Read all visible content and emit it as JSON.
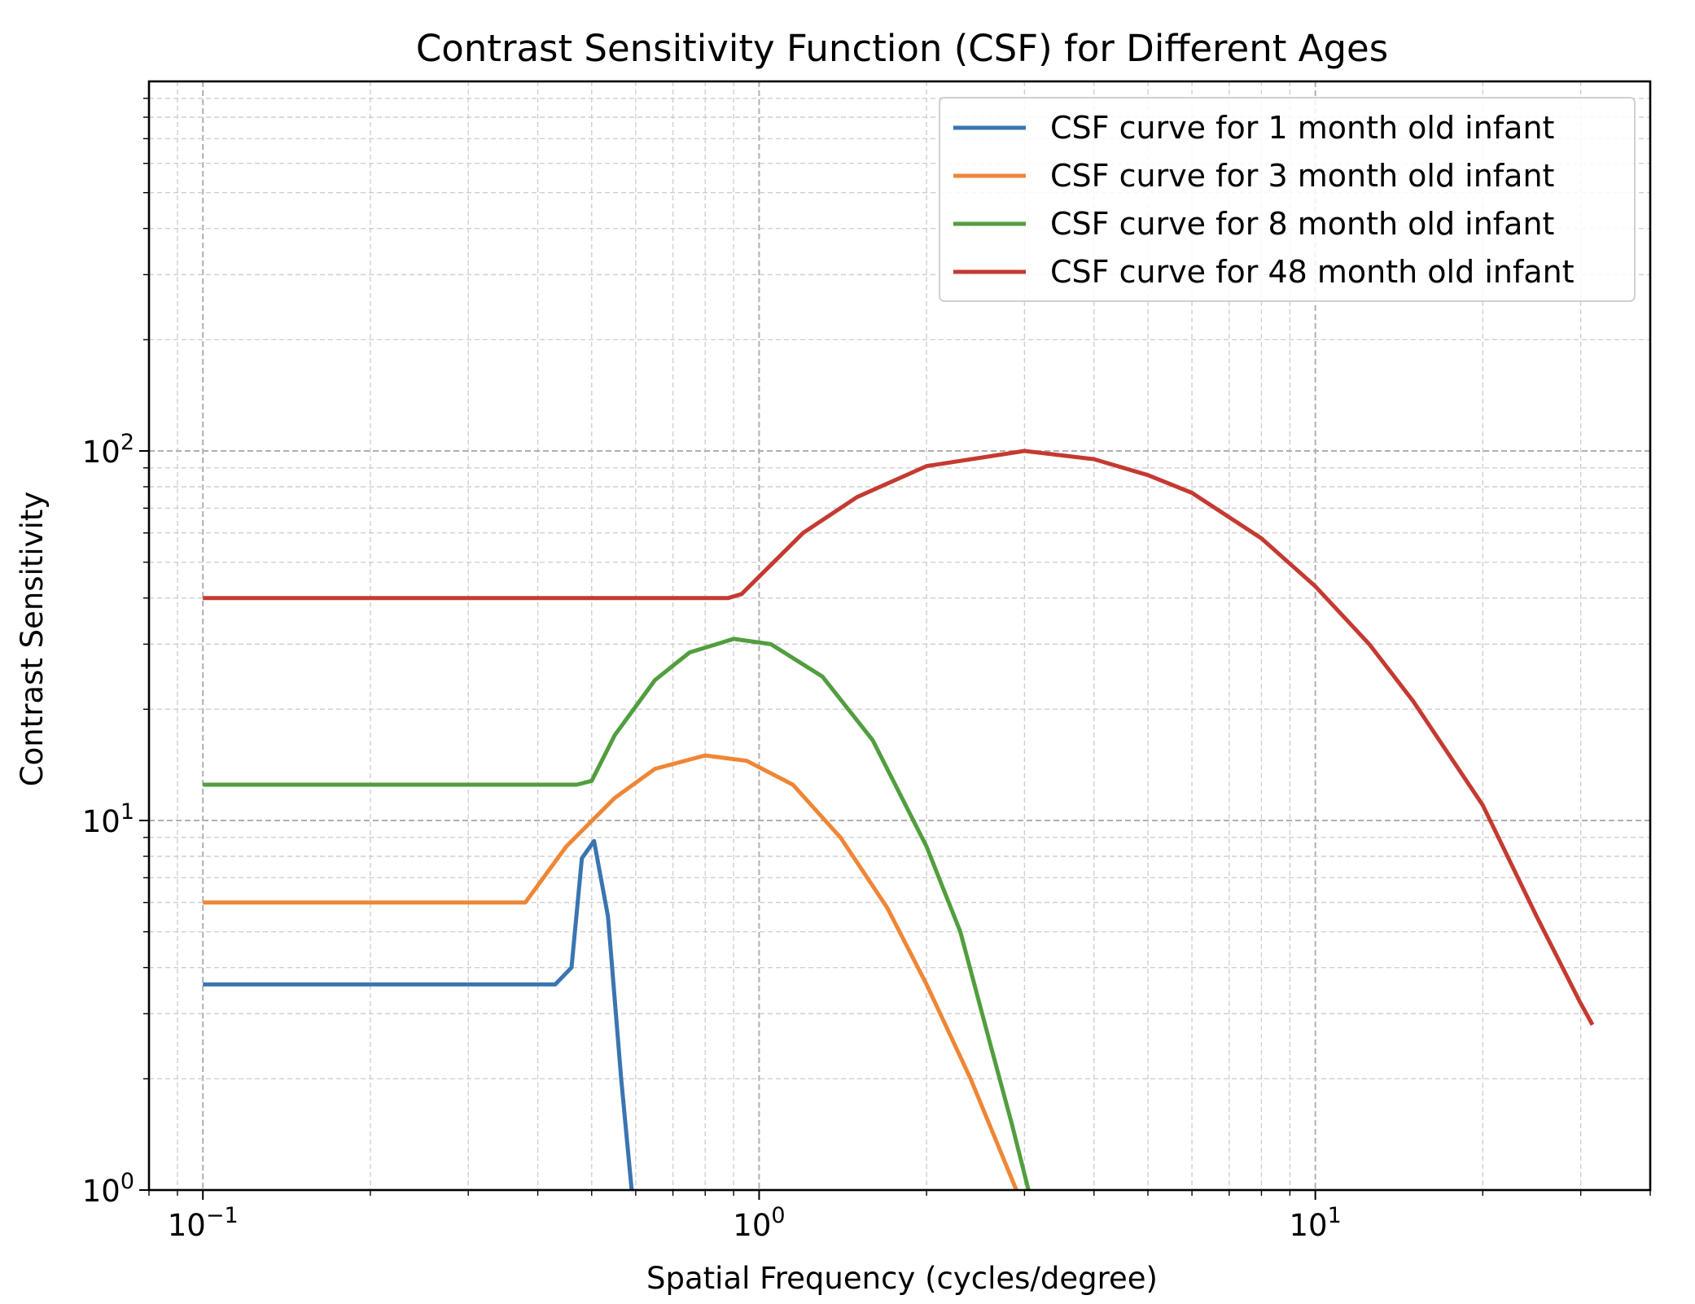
{
  "chart_data": {
    "type": "line",
    "title": "Contrast Sensitivity Function (CSF) for Different Ages",
    "xlabel": "Spatial Frequency (cycles/degree)",
    "ylabel": "Contrast Sensitivity",
    "xscale": "log",
    "yscale": "log",
    "xlim": [
      0.08,
      40
    ],
    "ylim": [
      1,
      1000
    ],
    "x_ticks": [
      {
        "value": 0.1,
        "base": "10",
        "exp": "−1"
      },
      {
        "value": 1,
        "base": "10",
        "exp": "0"
      },
      {
        "value": 10,
        "base": "10",
        "exp": "1"
      }
    ],
    "y_ticks": [
      {
        "value": 1,
        "base": "10",
        "exp": "0"
      },
      {
        "value": 10,
        "base": "10",
        "exp": "1"
      },
      {
        "value": 100,
        "base": "10",
        "exp": "2"
      }
    ],
    "grid": "major and minor, dashed",
    "legend_position": "upper-right",
    "series": [
      {
        "name": "CSF curve for 1 month old infant",
        "color": "#3a75b0",
        "points": [
          [
            0.1,
            3.6
          ],
          [
            0.43,
            3.6
          ],
          [
            0.46,
            4.0
          ],
          [
            0.48,
            7.9
          ],
          [
            0.505,
            8.8
          ],
          [
            0.535,
            5.5
          ],
          [
            0.565,
            2.0
          ],
          [
            0.59,
            1.0
          ]
        ]
      },
      {
        "name": "CSF curve for 3 month old infant",
        "color": "#ef8636",
        "points": [
          [
            0.1,
            6.0
          ],
          [
            0.38,
            6.0
          ],
          [
            0.45,
            8.5
          ],
          [
            0.55,
            11.5
          ],
          [
            0.65,
            13.8
          ],
          [
            0.8,
            15.0
          ],
          [
            0.95,
            14.5
          ],
          [
            1.15,
            12.5
          ],
          [
            1.4,
            9.0
          ],
          [
            1.7,
            5.8
          ],
          [
            2.0,
            3.6
          ],
          [
            2.4,
            2.0
          ],
          [
            2.7,
            1.3
          ],
          [
            2.9,
            1.0
          ]
        ]
      },
      {
        "name": "CSF curve for 8 month old infant",
        "color": "#519e3e",
        "points": [
          [
            0.1,
            12.5
          ],
          [
            0.47,
            12.5
          ],
          [
            0.5,
            12.8
          ],
          [
            0.55,
            17.0
          ],
          [
            0.65,
            24.0
          ],
          [
            0.75,
            28.5
          ],
          [
            0.9,
            31.0
          ],
          [
            1.05,
            30.0
          ],
          [
            1.3,
            24.5
          ],
          [
            1.6,
            16.5
          ],
          [
            2.0,
            8.5
          ],
          [
            2.3,
            5.0
          ],
          [
            2.6,
            2.5
          ],
          [
            2.85,
            1.5
          ],
          [
            3.05,
            1.0
          ]
        ]
      },
      {
        "name": "CSF curve for 48 month old infant",
        "color": "#c43a31",
        "points": [
          [
            0.1,
            40.0
          ],
          [
            0.88,
            40.0
          ],
          [
            0.93,
            41.0
          ],
          [
            1.2,
            60.0
          ],
          [
            1.5,
            75.0
          ],
          [
            2.0,
            91.0
          ],
          [
            3.0,
            100.0
          ],
          [
            4.0,
            95.0
          ],
          [
            5.0,
            86.0
          ],
          [
            6.0,
            77.0
          ],
          [
            8.0,
            58.0
          ],
          [
            10.0,
            43.0
          ],
          [
            12.5,
            30.0
          ],
          [
            15.0,
            21.0
          ],
          [
            20.0,
            11.0
          ],
          [
            25.0,
            5.5
          ],
          [
            30.0,
            3.2
          ],
          [
            31.5,
            2.8
          ]
        ]
      }
    ]
  }
}
